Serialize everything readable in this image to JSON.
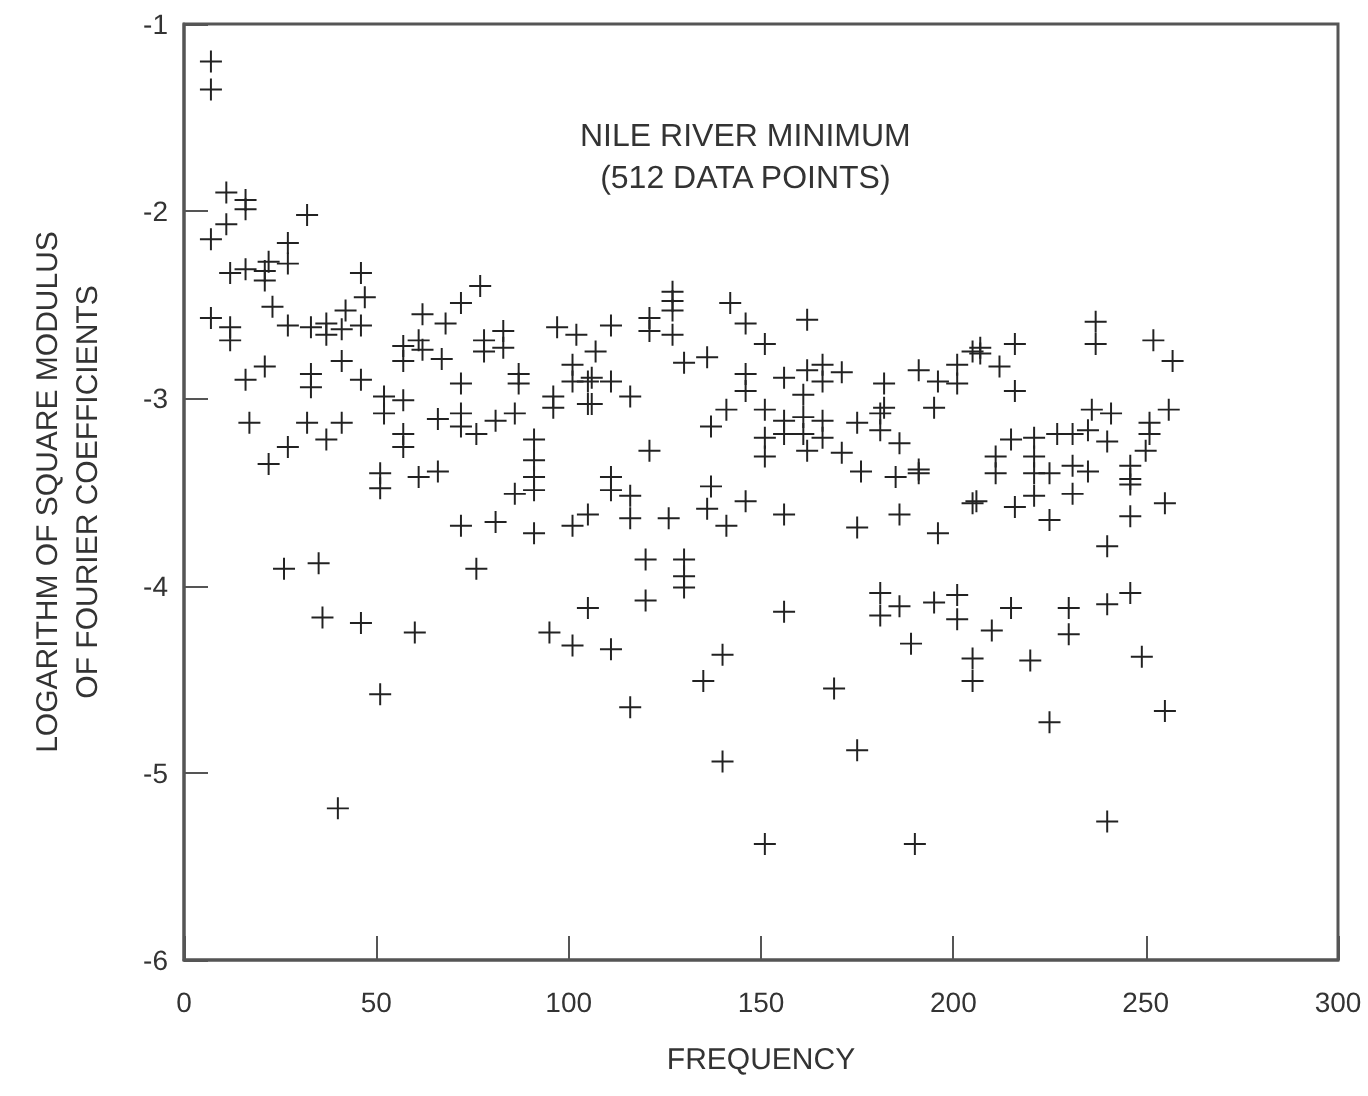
{
  "chart_data": {
    "type": "scatter",
    "xlabel": "FREQUENCY",
    "ylabel": "LOGARITHM OF SQUARE MODULUS\nOF FOURIER COEFFICIENTS",
    "annotations": [
      "NILE RIVER MINIMUM\n(512 DATA POINTS)"
    ],
    "xlim": [
      0,
      300
    ],
    "xticks": [
      0,
      50,
      100,
      150,
      200,
      250,
      300
    ],
    "ylim": [
      -6,
      -1
    ],
    "yticks": [
      -6,
      -5,
      -4,
      -3,
      -2,
      -1
    ],
    "grid": false,
    "marker": "cross",
    "series": [
      {
        "color": "#222222",
        "x": [
          7,
          7,
          11,
          16,
          16,
          32,
          11,
          7,
          27,
          22,
          27,
          12,
          16,
          21,
          21,
          46,
          47,
          42,
          23,
          7,
          12,
          12,
          27,
          33,
          37,
          37,
          41,
          46,
          62,
          68,
          72,
          77,
          57,
          57,
          61,
          62,
          67,
          78,
          78,
          83,
          83,
          97,
          102,
          101,
          101,
          105,
          105,
          96,
          96,
          87,
          87,
          72,
          41,
          46,
          33,
          33,
          21,
          16,
          52,
          52,
          57,
          17,
          32,
          27,
          22,
          37,
          41,
          57,
          57,
          66,
          72,
          72,
          76,
          81,
          86,
          91,
          91,
          91,
          91,
          61,
          66,
          51,
          51,
          86,
          91,
          72,
          81,
          101,
          105,
          26,
          35,
          76,
          36,
          46,
          60,
          105,
          95,
          101,
          51,
          40,
          127,
          127,
          127,
          142,
          121,
          121,
          127,
          111,
          146,
          151,
          162,
          130,
          136,
          106,
          111,
          106,
          116,
          146,
          146,
          156,
          162,
          166,
          166,
          171,
          161,
          182,
          182,
          191,
          196,
          201,
          201,
          205,
          195,
          141,
          137,
          151,
          151,
          151,
          156,
          156,
          161,
          161,
          166,
          166,
          162,
          175,
          181,
          181,
          186,
          171,
          176,
          185,
          191,
          191,
          121,
          111,
          111,
          137,
          116,
          116,
          126,
          136,
          141,
          146,
          156,
          120,
          120,
          130,
          130,
          130,
          111,
          116,
          135,
          140,
          140,
          156,
          151,
          169,
          175,
          175,
          186,
          196,
          181,
          181,
          186,
          195,
          201,
          201,
          189,
          205,
          205,
          205,
          190,
          107,
          237,
          237,
          252,
          257,
          207,
          207,
          216,
          212,
          216,
          236,
          241,
          256,
          251,
          251,
          250,
          215,
          221,
          227,
          231,
          235,
          240,
          221,
          211,
          211,
          221,
          225,
          231,
          235,
          246,
          246,
          246,
          231,
          221,
          206,
          216,
          225,
          246,
          255,
          240,
          210,
          215,
          230,
          230,
          240,
          246,
          220,
          249,
          255,
          225,
          240
        ],
        "values": [
          -1.2,
          -1.35,
          -1.9,
          -1.94,
          -1.99,
          -2.02,
          -2.07,
          -2.15,
          -2.17,
          -2.27,
          -2.28,
          -2.33,
          -2.31,
          -2.32,
          -2.37,
          -2.33,
          -2.46,
          -2.53,
          -2.51,
          -2.57,
          -2.62,
          -2.69,
          -2.61,
          -2.62,
          -2.6,
          -2.66,
          -2.63,
          -2.61,
          -2.55,
          -2.6,
          -2.49,
          -2.4,
          -2.72,
          -2.8,
          -2.69,
          -2.74,
          -2.79,
          -2.69,
          -2.75,
          -2.64,
          -2.73,
          -2.62,
          -2.66,
          -2.82,
          -2.91,
          -2.91,
          -3.03,
          -2.99,
          -3.05,
          -2.87,
          -2.92,
          -2.92,
          -2.8,
          -2.9,
          -2.87,
          -2.94,
          -2.83,
          -2.9,
          -2.99,
          -3.08,
          -3.01,
          -3.13,
          -3.13,
          -3.26,
          -3.35,
          -3.22,
          -3.13,
          -3.19,
          -3.26,
          -3.11,
          -3.08,
          -3.15,
          -3.19,
          -3.12,
          -3.08,
          -3.22,
          -3.33,
          -3.42,
          -3.49,
          -3.42,
          -3.39,
          -3.4,
          -3.48,
          -3.51,
          -3.72,
          -3.68,
          -3.66,
          -3.68,
          -3.62,
          -3.91,
          -3.88,
          -3.91,
          -4.17,
          -4.2,
          -4.25,
          -4.12,
          -4.25,
          -4.32,
          -4.58,
          -5.19,
          -2.43,
          -2.48,
          -2.53,
          -2.49,
          -2.57,
          -2.64,
          -2.66,
          -2.61,
          -2.6,
          -2.71,
          -2.58,
          -2.81,
          -2.78,
          -2.89,
          -2.91,
          -3.03,
          -2.99,
          -2.87,
          -2.96,
          -2.89,
          -2.85,
          -2.82,
          -2.91,
          -2.86,
          -2.98,
          -2.92,
          -3.05,
          -2.85,
          -2.91,
          -2.82,
          -2.92,
          -2.75,
          -3.05,
          -3.06,
          -3.15,
          -3.06,
          -3.21,
          -3.31,
          -3.12,
          -3.19,
          -3.1,
          -3.19,
          -3.12,
          -3.21,
          -3.28,
          -3.13,
          -3.08,
          -3.17,
          -3.24,
          -3.29,
          -3.39,
          -3.42,
          -3.38,
          -3.4,
          -3.28,
          -3.42,
          -3.49,
          -3.47,
          -3.52,
          -3.64,
          -3.64,
          -3.59,
          -3.68,
          -3.55,
          -3.62,
          -3.86,
          -4.08,
          -3.86,
          -3.95,
          -4.01,
          -4.34,
          -4.65,
          -4.51,
          -4.37,
          -4.94,
          -4.14,
          -5.38,
          -4.55,
          -4.88,
          -3.69,
          -3.62,
          -3.72,
          -4.04,
          -4.16,
          -4.11,
          -4.09,
          -4.05,
          -4.18,
          -4.31,
          -4.39,
          -4.51,
          -3.56,
          -5.38,
          -2.75,
          -2.59,
          -2.71,
          -2.69,
          -2.8,
          -2.73,
          -2.76,
          -2.71,
          -2.83,
          -2.96,
          -3.06,
          -3.08,
          -3.06,
          -3.13,
          -3.19,
          -3.28,
          -3.22,
          -3.21,
          -3.19,
          -3.19,
          -3.17,
          -3.23,
          -3.31,
          -3.31,
          -3.4,
          -3.4,
          -3.4,
          -3.36,
          -3.39,
          -3.36,
          -3.43,
          -3.46,
          -3.51,
          -3.52,
          -3.55,
          -3.58,
          -3.65,
          -3.63,
          -3.56,
          -3.79,
          -4.24,
          -4.12,
          -4.12,
          -4.26,
          -4.1,
          -4.04,
          -4.4,
          -4.38,
          -4.67,
          -4.73,
          -5.26
        ]
      }
    ]
  }
}
